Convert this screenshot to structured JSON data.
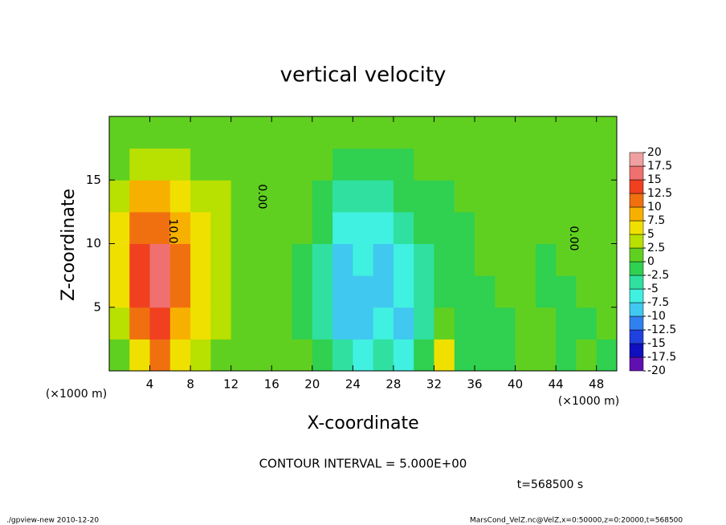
{
  "chart_data": {
    "type": "heatmap",
    "title": "vertical velocity",
    "x_label": "X-coordinate",
    "y_label": "Z-coordinate",
    "x_unit": "(×1000 m)",
    "x_unit_right": "(×1000 m)",
    "contour_labels": [
      "10.0",
      "0.00",
      "0.00"
    ],
    "contour_interval": "CONTOUR INTERVAL = 5.000E+00",
    "time": "t=568500 s",
    "footer_left": "./gpview-new   2010-12-20",
    "footer_right": "MarsCond_VelZ.nc@VelZ,x=0:50000,z=0:20000,t=568500",
    "xlim": [
      0,
      50
    ],
    "ylim": [
      0,
      20
    ],
    "xticks": [
      4,
      8,
      12,
      16,
      20,
      24,
      28,
      32,
      36,
      40,
      44,
      48
    ],
    "yticks": [
      5,
      10,
      15
    ],
    "x": [
      1,
      3,
      5,
      7,
      9,
      11,
      13,
      15,
      17,
      19,
      21,
      23,
      25,
      27,
      29,
      31,
      33,
      35,
      37,
      39,
      41,
      43,
      45,
      47,
      49
    ],
    "y": [
      1.25,
      3.75,
      6.25,
      8.75,
      11.25,
      13.75,
      16.25,
      18.75
    ],
    "values": [
      [
        2,
        6,
        10,
        5,
        3,
        1,
        0,
        0,
        0,
        0,
        -1,
        -4,
        -6,
        -4,
        -6,
        -2,
        5,
        -1,
        -1,
        -1,
        0,
        0,
        -1,
        0,
        -1
      ],
      [
        4,
        10,
        14,
        9,
        6,
        3,
        1,
        0,
        0,
        -1,
        -3,
        -8,
        -9,
        -7,
        -8,
        -3,
        0,
        -1,
        -1,
        -1,
        0,
        0,
        -1,
        -1,
        0
      ],
      [
        6,
        13,
        16,
        10,
        7,
        4,
        2,
        0,
        0,
        -1,
        -5,
        -10,
        -8,
        -8,
        -6,
        -4,
        -1,
        -1,
        -1,
        0,
        0,
        -1,
        -1,
        0,
        0
      ],
      [
        7,
        14,
        16,
        10,
        7,
        4,
        2,
        1,
        0,
        -1,
        -4,
        -10,
        -7,
        -8,
        -6,
        -3,
        -2,
        -1,
        0,
        0,
        0,
        -1,
        0,
        0,
        0
      ],
      [
        6,
        12,
        12,
        8,
        6,
        4,
        2,
        0,
        0,
        0,
        -2,
        -6,
        -6,
        -6,
        -4,
        -2,
        -1,
        -1,
        0,
        0,
        0,
        0,
        0,
        0,
        0
      ],
      [
        4,
        8,
        8,
        6,
        4,
        3,
        1,
        0,
        0,
        0,
        -1,
        -3,
        -4,
        -3,
        -2,
        -1,
        -1,
        0,
        0,
        0,
        0,
        0,
        0,
        0,
        0
      ],
      [
        2,
        3,
        4,
        3,
        2,
        2,
        1,
        0,
        0,
        0,
        0,
        -1,
        -2,
        -1,
        -1,
        0,
        0,
        0,
        0,
        0,
        0,
        0,
        0,
        0,
        0
      ],
      [
        1,
        1,
        1,
        1,
        1,
        1,
        0,
        0,
        0,
        0,
        0,
        0,
        0,
        0,
        0,
        0,
        0,
        0,
        0,
        0,
        0,
        0,
        0,
        0,
        0
      ]
    ],
    "colorbar_ticks": [
      -20,
      -17.5,
      -15,
      -12.5,
      -10,
      -7.5,
      -5,
      -2.5,
      0,
      2.5,
      5,
      7.5,
      10,
      12.5,
      15,
      17.5,
      20
    ],
    "colorbar_colors": [
      "#6010b0",
      "#1010c0",
      "#2040e0",
      "#3080f0",
      "#40c8f0",
      "#40f0e0",
      "#30e0a0",
      "#30d050",
      "#60d020",
      "#b8e000",
      "#f0e000",
      "#f8b000",
      "#f07010",
      "#f04020",
      "#f07070",
      "#f0a0a0"
    ]
  }
}
